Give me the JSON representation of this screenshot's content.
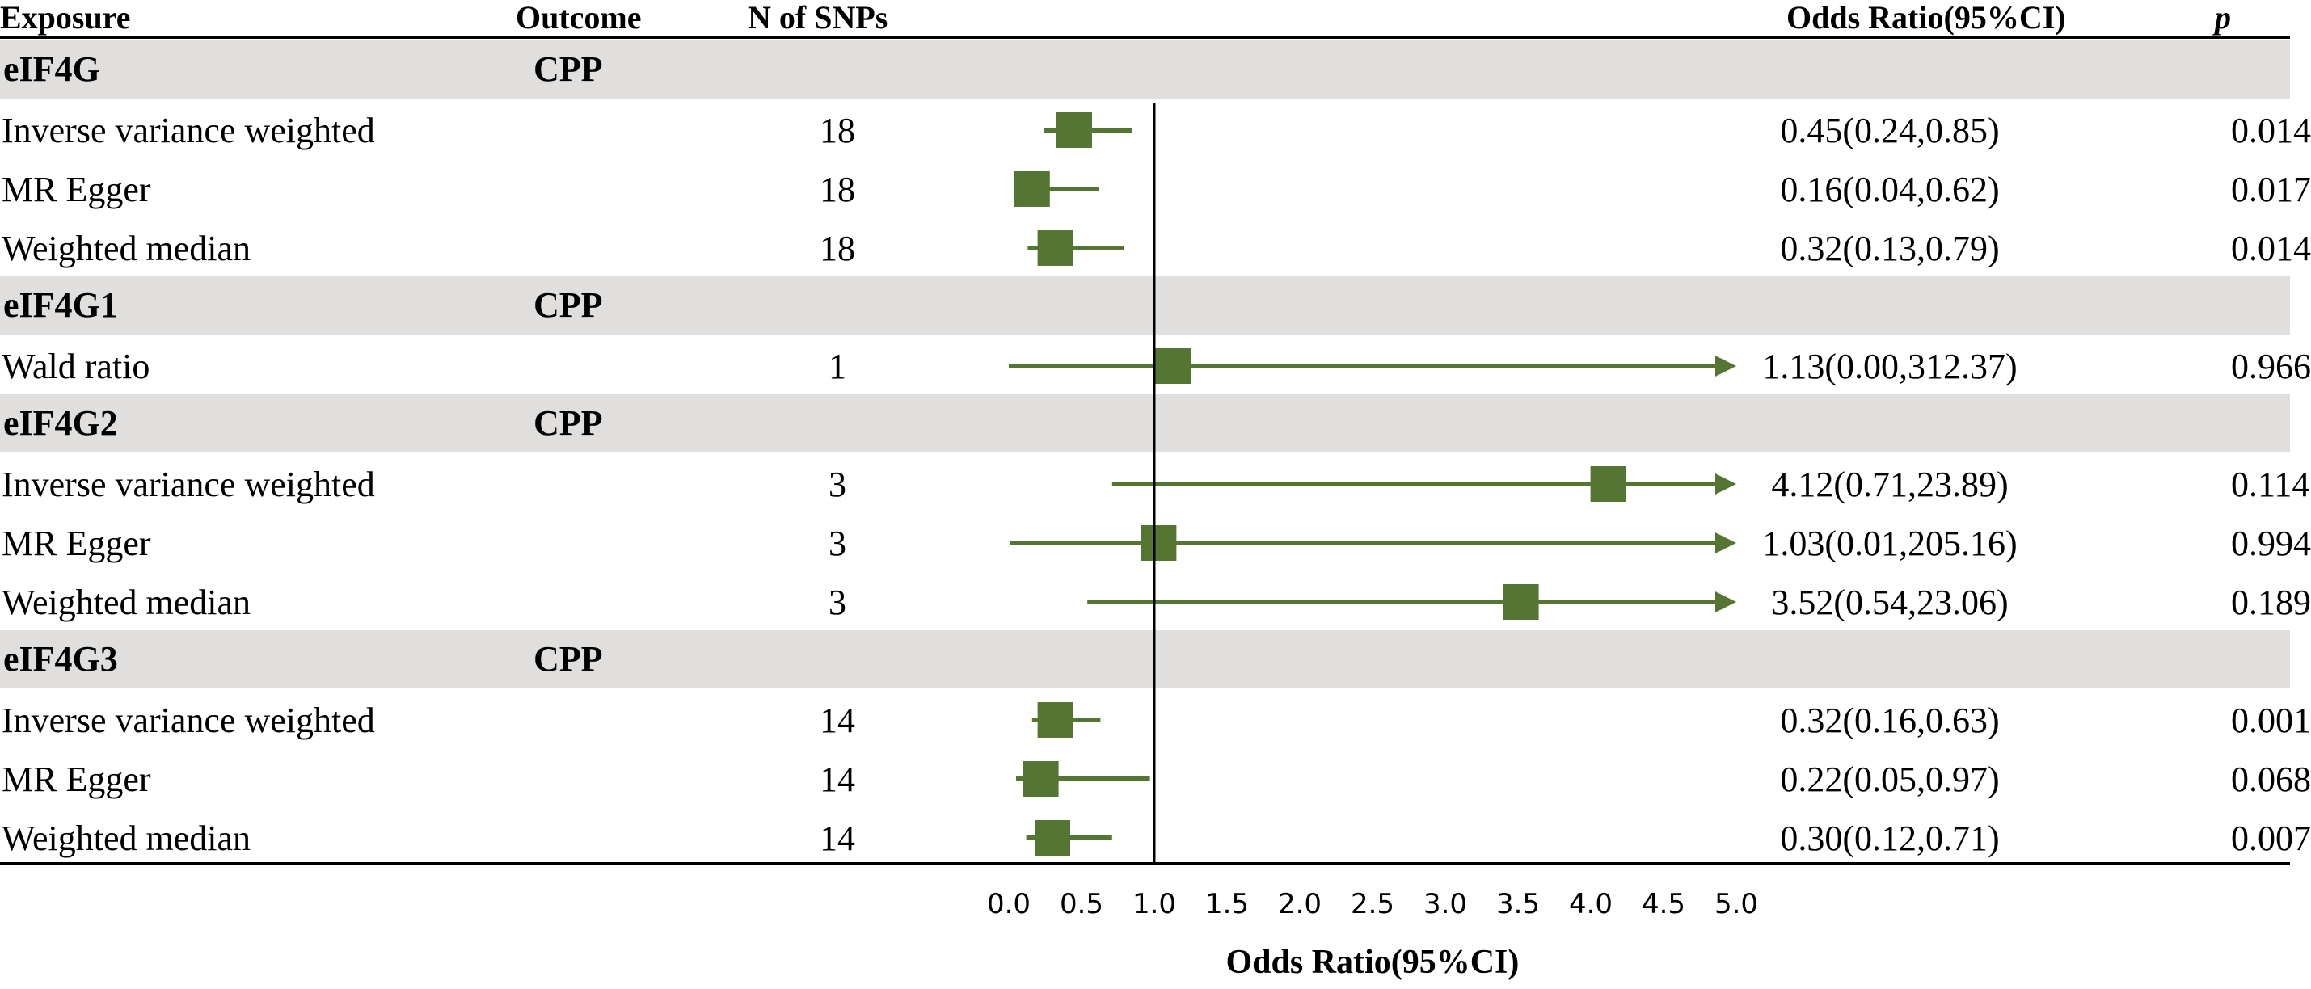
{
  "headers": {
    "exposure": "Exposure",
    "outcome": "Outcome",
    "nsnps": "N of SNPs",
    "or": "Odds Ratio(95%CI)",
    "p": "p"
  },
  "colors": {
    "marker": "#557633",
    "band": "#e0dfdd",
    "line": "#000000"
  },
  "chart_data": {
    "type": "forest",
    "xlabel": "Odds Ratio(95%CI)",
    "xlim": [
      0,
      5
    ],
    "xticks": [
      "0.0",
      "0.5",
      "1.0",
      "1.5",
      "2.0",
      "2.5",
      "3.0",
      "3.5",
      "4.0",
      "4.5",
      "5.0"
    ],
    "reference_line": 1,
    "groups": [
      {
        "exposure": "eIF4G",
        "outcome": "CPP",
        "rows": [
          {
            "method": "Inverse variance weighted",
            "n": "18",
            "or": 0.45,
            "lo": 0.24,
            "hi": 0.85,
            "or_text": "0.45(0.24,0.85)",
            "p": "0.014"
          },
          {
            "method": "MR Egger",
            "n": "18",
            "or": 0.16,
            "lo": 0.04,
            "hi": 0.62,
            "or_text": "0.16(0.04,0.62)",
            "p": "0.017"
          },
          {
            "method": "Weighted median",
            "n": "18",
            "or": 0.32,
            "lo": 0.13,
            "hi": 0.79,
            "or_text": "0.32(0.13,0.79)",
            "p": "0.014"
          }
        ]
      },
      {
        "exposure": "eIF4G1",
        "outcome": "CPP",
        "rows": [
          {
            "method": "Wald ratio",
            "n": "1",
            "or": 1.13,
            "lo": 0.0,
            "hi": 312.37,
            "or_text": "1.13(0.00,312.37)",
            "p": "0.966"
          }
        ]
      },
      {
        "exposure": "eIF4G2",
        "outcome": "CPP",
        "rows": [
          {
            "method": "Inverse variance weighted",
            "n": "3",
            "or": 4.12,
            "lo": 0.71,
            "hi": 23.89,
            "or_text": "4.12(0.71,23.89)",
            "p": "0.114"
          },
          {
            "method": "MR Egger",
            "n": "3",
            "or": 1.03,
            "lo": 0.01,
            "hi": 205.16,
            "or_text": "1.03(0.01,205.16)",
            "p": "0.994"
          },
          {
            "method": "Weighted median",
            "n": "3",
            "or": 3.52,
            "lo": 0.54,
            "hi": 23.06,
            "or_text": "3.52(0.54,23.06)",
            "p": "0.189"
          }
        ]
      },
      {
        "exposure": "eIF4G3",
        "outcome": "CPP",
        "rows": [
          {
            "method": "Inverse variance weighted",
            "n": "14",
            "or": 0.32,
            "lo": 0.16,
            "hi": 0.63,
            "or_text": "0.32(0.16,0.63)",
            "p": "0.001"
          },
          {
            "method": "MR Egger",
            "n": "14",
            "or": 0.22,
            "lo": 0.05,
            "hi": 0.97,
            "or_text": "0.22(0.05,0.97)",
            "p": "0.068"
          },
          {
            "method": "Weighted median",
            "n": "14",
            "or": 0.3,
            "lo": 0.12,
            "hi": 0.71,
            "or_text": "0.30(0.12,0.71)",
            "p": "0.007"
          }
        ]
      }
    ]
  }
}
